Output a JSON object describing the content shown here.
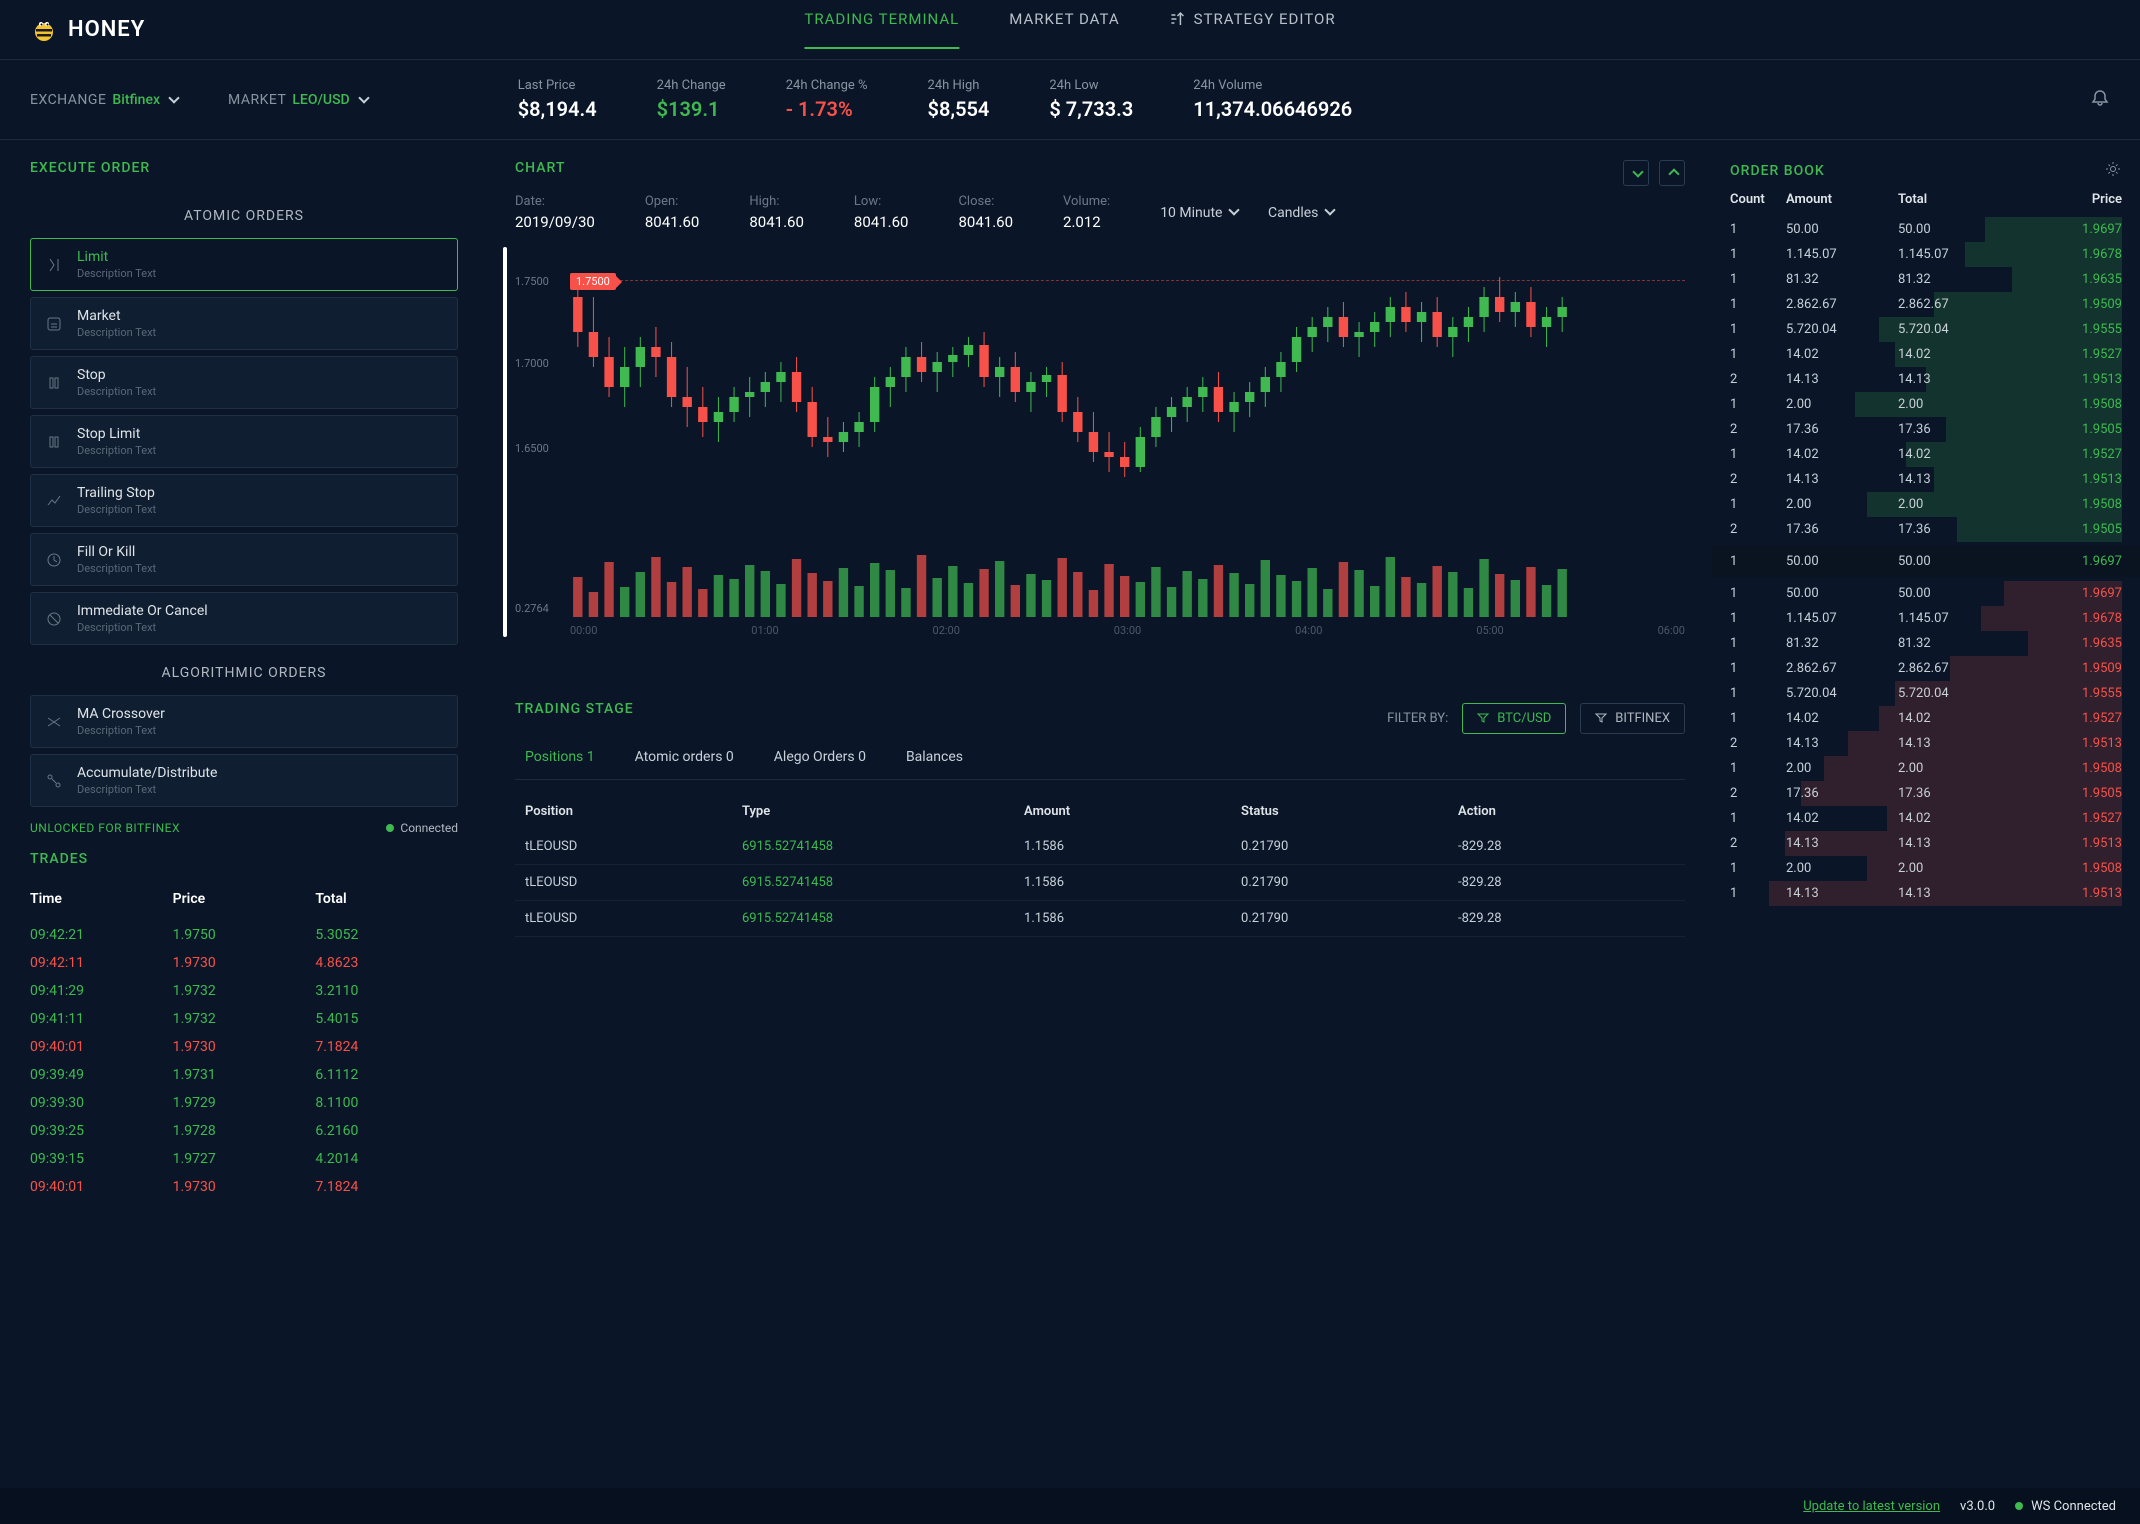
{
  "brand": "HONEY",
  "nav": {
    "trading_terminal": "TRADING TERMINAL",
    "market_data": "MARKET DATA",
    "strategy_editor": "STRATEGY EDITOR"
  },
  "selectors": {
    "exchange_label": "EXCHANGE",
    "exchange_value": "Bitfinex",
    "market_label": "MARKET",
    "market_value": "LEO/USD"
  },
  "stats": {
    "last_price": {
      "label": "Last Price",
      "value": "$8,194.4"
    },
    "change_24h": {
      "label": "24h Change",
      "value": "$139.1",
      "color": "green"
    },
    "change_pct": {
      "label": "24h Change %",
      "value": "- 1.73%",
      "color": "red"
    },
    "high_24h": {
      "label": "24h High",
      "value": "$8,554"
    },
    "low_24h": {
      "label": "24h Low",
      "value": "$ 7,733.3"
    },
    "vol_24h": {
      "label": "24h Volume",
      "value": "11,374.06646926"
    }
  },
  "execute_order": {
    "title": "EXECUTE ORDER",
    "atomic_label": "ATOMIC ORDERS",
    "algo_label": "ALGORITHMIC ORDERS",
    "desc": "Description Text",
    "types": {
      "limit": "Limit",
      "market": "Market",
      "stop": "Stop",
      "stop_limit": "Stop Limit",
      "trailing_stop": "Trailing Stop",
      "fill_or_kill": "Fill Or Kill",
      "ioc": "Immediate Or Cancel",
      "ma_crossover": "MA Crossover",
      "accum": "Accumulate/Distribute"
    }
  },
  "status": {
    "unlocked": "UNLOCKED FOR BITFINEX",
    "connected": "Connected"
  },
  "trades": {
    "title": "TRADES",
    "cols": {
      "time": "Time",
      "price": "Price",
      "total": "Total"
    },
    "rows": [
      {
        "time": "09:42:21",
        "price": "1.9750",
        "total": "5.3052",
        "side": "green"
      },
      {
        "time": "09:42:11",
        "price": "1.9730",
        "total": "4.8623",
        "side": "red"
      },
      {
        "time": "09:41:29",
        "price": "1.9732",
        "total": "3.2110",
        "side": "green"
      },
      {
        "time": "09:41:11",
        "price": "1.9732",
        "total": "5.4015",
        "side": "green"
      },
      {
        "time": "09:40:01",
        "price": "1.9730",
        "total": "7.1824",
        "side": "red"
      },
      {
        "time": "09:39:49",
        "price": "1.9731",
        "total": "6.1112",
        "side": "green"
      },
      {
        "time": "09:39:30",
        "price": "1.9729",
        "total": "8.1100",
        "side": "green"
      },
      {
        "time": "09:39:25",
        "price": "1.9728",
        "total": "6.2160",
        "side": "green"
      },
      {
        "time": "09:39:15",
        "price": "1.9727",
        "total": "4.2014",
        "side": "green"
      },
      {
        "time": "09:40:01",
        "price": "1.9730",
        "total": "7.1824",
        "side": "red"
      }
    ]
  },
  "chart": {
    "title": "CHART",
    "ohlc": {
      "date_label": "Date:",
      "date": "2019/09/30",
      "open_label": "Open:",
      "open": "8041.60",
      "high_label": "High:",
      "high": "8041.60",
      "low_label": "Low:",
      "low": "8041.60",
      "close_label": "Close:",
      "close": "8041.60",
      "vol_label": "Volume:",
      "vol": "2.012"
    },
    "interval": "10 Minute",
    "style": "Candles",
    "price_tag": "1.7500",
    "y_labels": [
      "1.7500",
      "1.7000",
      "1.6500",
      "0.2764"
    ],
    "x_labels": [
      "00:00",
      "01:00",
      "02:00",
      "03:00",
      "04:00",
      "05:00",
      "06:00"
    ],
    "colors": {
      "up": "#3fb950",
      "down": "#f85149",
      "bg": "#0a1628"
    },
    "candles": [
      {
        "o": 50,
        "h": 35,
        "l": 100,
        "c": 85,
        "d": "down"
      },
      {
        "o": 85,
        "h": 50,
        "l": 120,
        "c": 110,
        "d": "down"
      },
      {
        "o": 110,
        "h": 90,
        "l": 150,
        "c": 140,
        "d": "down"
      },
      {
        "o": 140,
        "h": 100,
        "l": 160,
        "c": 120,
        "d": "up"
      },
      {
        "o": 120,
        "h": 90,
        "l": 140,
        "c": 100,
        "d": "up"
      },
      {
        "o": 100,
        "h": 80,
        "l": 130,
        "c": 110,
        "d": "down"
      },
      {
        "o": 110,
        "h": 95,
        "l": 160,
        "c": 150,
        "d": "down"
      },
      {
        "o": 150,
        "h": 120,
        "l": 180,
        "c": 160,
        "d": "down"
      },
      {
        "o": 160,
        "h": 140,
        "l": 190,
        "c": 175,
        "d": "down"
      },
      {
        "o": 175,
        "h": 150,
        "l": 195,
        "c": 165,
        "d": "up"
      },
      {
        "o": 165,
        "h": 140,
        "l": 175,
        "c": 150,
        "d": "up"
      },
      {
        "o": 150,
        "h": 130,
        "l": 170,
        "c": 145,
        "d": "up"
      },
      {
        "o": 145,
        "h": 125,
        "l": 160,
        "c": 135,
        "d": "up"
      },
      {
        "o": 135,
        "h": 115,
        "l": 155,
        "c": 125,
        "d": "up"
      },
      {
        "o": 125,
        "h": 110,
        "l": 165,
        "c": 155,
        "d": "down"
      },
      {
        "o": 155,
        "h": 140,
        "l": 200,
        "c": 190,
        "d": "down"
      },
      {
        "o": 190,
        "h": 170,
        "l": 210,
        "c": 195,
        "d": "down"
      },
      {
        "o": 195,
        "h": 175,
        "l": 205,
        "c": 185,
        "d": "up"
      },
      {
        "o": 185,
        "h": 165,
        "l": 200,
        "c": 175,
        "d": "up"
      },
      {
        "o": 175,
        "h": 130,
        "l": 185,
        "c": 140,
        "d": "up"
      },
      {
        "o": 140,
        "h": 120,
        "l": 160,
        "c": 130,
        "d": "up"
      },
      {
        "o": 130,
        "h": 100,
        "l": 145,
        "c": 110,
        "d": "up"
      },
      {
        "o": 110,
        "h": 95,
        "l": 135,
        "c": 125,
        "d": "down"
      },
      {
        "o": 125,
        "h": 105,
        "l": 145,
        "c": 115,
        "d": "up"
      },
      {
        "o": 115,
        "h": 100,
        "l": 130,
        "c": 108,
        "d": "up"
      },
      {
        "o": 108,
        "h": 90,
        "l": 120,
        "c": 98,
        "d": "up"
      },
      {
        "o": 98,
        "h": 85,
        "l": 140,
        "c": 130,
        "d": "down"
      },
      {
        "o": 130,
        "h": 110,
        "l": 150,
        "c": 120,
        "d": "up"
      },
      {
        "o": 120,
        "h": 105,
        "l": 155,
        "c": 145,
        "d": "down"
      },
      {
        "o": 145,
        "h": 125,
        "l": 165,
        "c": 135,
        "d": "up"
      },
      {
        "o": 135,
        "h": 120,
        "l": 150,
        "c": 128,
        "d": "up"
      },
      {
        "o": 128,
        "h": 115,
        "l": 175,
        "c": 165,
        "d": "down"
      },
      {
        "o": 165,
        "h": 150,
        "l": 195,
        "c": 185,
        "d": "down"
      },
      {
        "o": 185,
        "h": 165,
        "l": 215,
        "c": 205,
        "d": "down"
      },
      {
        "o": 205,
        "h": 185,
        "l": 225,
        "c": 210,
        "d": "down"
      },
      {
        "o": 210,
        "h": 195,
        "l": 230,
        "c": 220,
        "d": "down"
      },
      {
        "o": 220,
        "h": 180,
        "l": 225,
        "c": 190,
        "d": "up"
      },
      {
        "o": 190,
        "h": 160,
        "l": 200,
        "c": 170,
        "d": "up"
      },
      {
        "o": 170,
        "h": 150,
        "l": 185,
        "c": 160,
        "d": "up"
      },
      {
        "o": 160,
        "h": 140,
        "l": 175,
        "c": 150,
        "d": "up"
      },
      {
        "o": 150,
        "h": 130,
        "l": 165,
        "c": 140,
        "d": "up"
      },
      {
        "o": 140,
        "h": 125,
        "l": 175,
        "c": 165,
        "d": "down"
      },
      {
        "o": 165,
        "h": 145,
        "l": 185,
        "c": 155,
        "d": "up"
      },
      {
        "o": 155,
        "h": 135,
        "l": 170,
        "c": 145,
        "d": "up"
      },
      {
        "o": 145,
        "h": 120,
        "l": 160,
        "c": 130,
        "d": "up"
      },
      {
        "o": 130,
        "h": 105,
        "l": 145,
        "c": 115,
        "d": "up"
      },
      {
        "o": 115,
        "h": 80,
        "l": 125,
        "c": 90,
        "d": "up"
      },
      {
        "o": 90,
        "h": 70,
        "l": 105,
        "c": 80,
        "d": "up"
      },
      {
        "o": 80,
        "h": 60,
        "l": 95,
        "c": 70,
        "d": "up"
      },
      {
        "o": 70,
        "h": 55,
        "l": 100,
        "c": 90,
        "d": "down"
      },
      {
        "o": 90,
        "h": 75,
        "l": 110,
        "c": 85,
        "d": "up"
      },
      {
        "o": 85,
        "h": 65,
        "l": 100,
        "c": 75,
        "d": "up"
      },
      {
        "o": 75,
        "h": 50,
        "l": 90,
        "c": 60,
        "d": "up"
      },
      {
        "o": 60,
        "h": 45,
        "l": 85,
        "c": 75,
        "d": "down"
      },
      {
        "o": 75,
        "h": 55,
        "l": 95,
        "c": 65,
        "d": "up"
      },
      {
        "o": 65,
        "h": 50,
        "l": 100,
        "c": 90,
        "d": "down"
      },
      {
        "o": 90,
        "h": 70,
        "l": 110,
        "c": 80,
        "d": "up"
      },
      {
        "o": 80,
        "h": 60,
        "l": 95,
        "c": 70,
        "d": "up"
      },
      {
        "o": 70,
        "h": 40,
        "l": 85,
        "c": 50,
        "d": "up"
      },
      {
        "o": 50,
        "h": 30,
        "l": 75,
        "c": 65,
        "d": "down"
      },
      {
        "o": 65,
        "h": 45,
        "l": 80,
        "c": 55,
        "d": "up"
      },
      {
        "o": 55,
        "h": 40,
        "l": 90,
        "c": 80,
        "d": "down"
      },
      {
        "o": 80,
        "h": 60,
        "l": 100,
        "c": 70,
        "d": "up"
      },
      {
        "o": 70,
        "h": 50,
        "l": 85,
        "c": 60,
        "d": "up"
      }
    ],
    "volumes": [
      40,
      25,
      55,
      30,
      45,
      60,
      35,
      50,
      28,
      42,
      38,
      52,
      46,
      33,
      58,
      44,
      36,
      49,
      31,
      54,
      47,
      29,
      62,
      39,
      51,
      34,
      48,
      56,
      32,
      43,
      37,
      59,
      45,
      27,
      53,
      41,
      35,
      50,
      30,
      46,
      38,
      52,
      44,
      33,
      57,
      42,
      36,
      49,
      28,
      55,
      47,
      31,
      60,
      40,
      34,
      51,
      45,
      29,
      58,
      43,
      37,
      50,
      32,
      48
    ]
  },
  "trading_stage": {
    "title": "TRADING STAGE",
    "filter_label": "FILTER BY:",
    "filter_btc": "BTC/USD",
    "filter_bfx": "BITFINEX",
    "tabs": {
      "positions": "Positions 1",
      "atomic": "Atomic orders 0",
      "alego": "Alego Orders 0",
      "balances": "Balances"
    },
    "cols": {
      "position": "Position",
      "type": "Type",
      "amount": "Amount",
      "status": "Status",
      "action": "Action"
    },
    "rows": [
      {
        "position": "tLEOUSD",
        "type": "6915.52741458",
        "amount": "1.1586",
        "status": "0.21790",
        "action": "-829.28"
      },
      {
        "position": "tLEOUSD",
        "type": "6915.52741458",
        "amount": "1.1586",
        "status": "0.21790",
        "action": "-829.28"
      },
      {
        "position": "tLEOUSD",
        "type": "6915.52741458",
        "amount": "1.1586",
        "status": "0.21790",
        "action": "-829.28"
      }
    ]
  },
  "order_book": {
    "title": "ORDER BOOK",
    "cols": {
      "count": "Count",
      "amount": "Amount",
      "total": "Total",
      "price": "Price"
    },
    "asks": [
      {
        "count": "1",
        "amount": "50.00",
        "total": "50.00",
        "price": "1.9697",
        "depth": 35
      },
      {
        "count": "1",
        "amount": "1.145.07",
        "total": "1.145.07",
        "price": "1.9678",
        "depth": 40
      },
      {
        "count": "1",
        "amount": "81.32",
        "total": "81.32",
        "price": "1.9635",
        "depth": 28
      },
      {
        "count": "1",
        "amount": "2.862.67",
        "total": "2.862.67",
        "price": "1.9509",
        "depth": 48
      },
      {
        "count": "1",
        "amount": "5.720.04",
        "total": "5.720.04",
        "price": "1.9555",
        "depth": 62
      },
      {
        "count": "1",
        "amount": "14.02",
        "total": "14.02",
        "price": "1.9527",
        "depth": 58
      },
      {
        "count": "2",
        "amount": "14.13",
        "total": "14.13",
        "price": "1.9513",
        "depth": 50
      },
      {
        "count": "1",
        "amount": "2.00",
        "total": "2.00",
        "price": "1.9508",
        "depth": 68
      },
      {
        "count": "2",
        "amount": "17.36",
        "total": "17.36",
        "price": "1.9505",
        "depth": 45
      },
      {
        "count": "1",
        "amount": "14.02",
        "total": "14.02",
        "price": "1.9527",
        "depth": 55
      },
      {
        "count": "2",
        "amount": "14.13",
        "total": "14.13",
        "price": "1.9513",
        "depth": 48
      },
      {
        "count": "1",
        "amount": "2.00",
        "total": "2.00",
        "price": "1.9508",
        "depth": 65
      },
      {
        "count": "2",
        "amount": "17.36",
        "total": "17.36",
        "price": "1.9505",
        "depth": 42
      }
    ],
    "spread": {
      "count": "1",
      "amount": "50.00",
      "total": "50.00",
      "price": "1.9697"
    },
    "bids": [
      {
        "count": "1",
        "amount": "50.00",
        "total": "50.00",
        "price": "1.9697",
        "depth": 30
      },
      {
        "count": "1",
        "amount": "1.145.07",
        "total": "1.145.07",
        "price": "1.9678",
        "depth": 36
      },
      {
        "count": "1",
        "amount": "81.32",
        "total": "81.32",
        "price": "1.9635",
        "depth": 24
      },
      {
        "count": "1",
        "amount": "2.862.67",
        "total": "2.862.67",
        "price": "1.9509",
        "depth": 44
      },
      {
        "count": "1",
        "amount": "5.720.04",
        "total": "5.720.04",
        "price": "1.9555",
        "depth": 58
      },
      {
        "count": "1",
        "amount": "14.02",
        "total": "14.02",
        "price": "1.9527",
        "depth": 62
      },
      {
        "count": "2",
        "amount": "14.13",
        "total": "14.13",
        "price": "1.9513",
        "depth": 70
      },
      {
        "count": "1",
        "amount": "2.00",
        "total": "2.00",
        "price": "1.9508",
        "depth": 76
      },
      {
        "count": "2",
        "amount": "17.36",
        "total": "17.36",
        "price": "1.9505",
        "depth": 82
      },
      {
        "count": "1",
        "amount": "14.02",
        "total": "14.02",
        "price": "1.9527",
        "depth": 60
      },
      {
        "count": "2",
        "amount": "14.13",
        "total": "14.13",
        "price": "1.9513",
        "depth": 86
      },
      {
        "count": "1",
        "amount": "2.00",
        "total": "2.00",
        "price": "1.9508",
        "depth": 65
      },
      {
        "count": "1",
        "amount": "14.13",
        "total": "14.13",
        "price": "1.9513",
        "depth": 90
      }
    ]
  },
  "footer": {
    "update": "Update to latest version",
    "version": "v3.0.0",
    "ws": "WS Connected"
  }
}
